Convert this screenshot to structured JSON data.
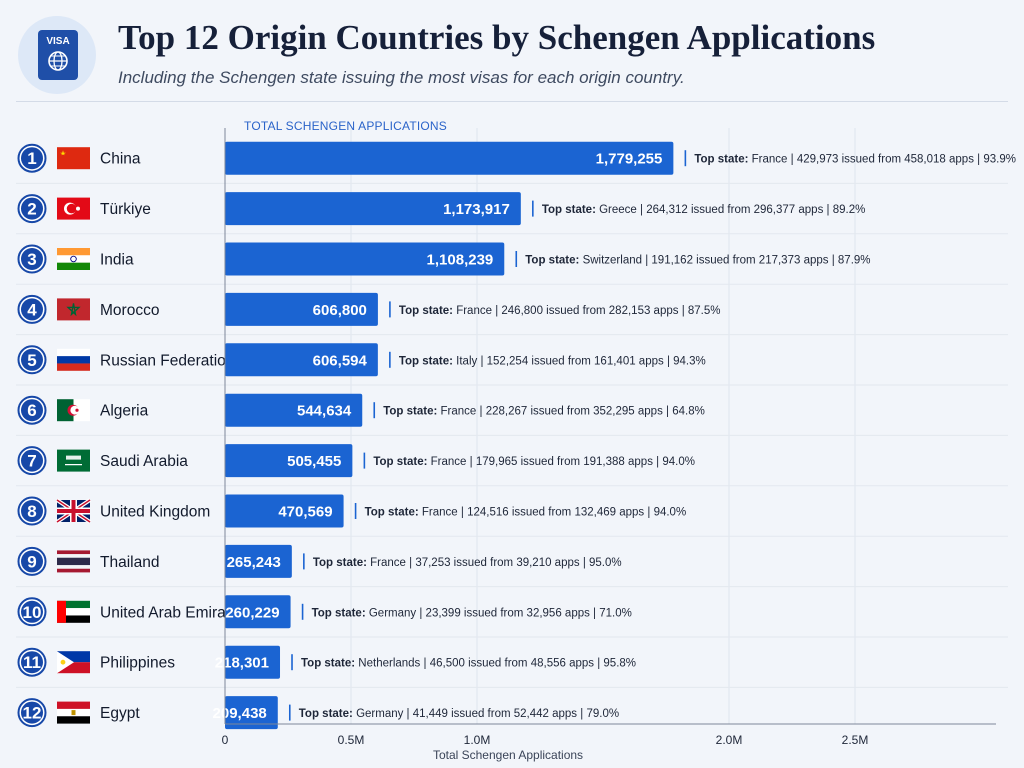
{
  "header": {
    "title": "Top 12 Origin Countries by Schengen Applications",
    "subtitle": "Including the Schengen state issuing the most visas for each origin country.",
    "icon": "passport-icon",
    "icon_label": "VISA"
  },
  "colors": {
    "bar": "#1b64d2",
    "rank_circle": "#1748a8",
    "title": "#162039",
    "axis_accent": "#2a63c9"
  },
  "chart_data": {
    "type": "bar",
    "orientation": "horizontal",
    "title": "Top 12 Origin Countries by Schengen Applications",
    "subtitle": "Including the Schengen state issuing the most visas for each origin country.",
    "series_label": "TOTAL SCHENGEN APPLICATIONS",
    "xlabel": "Total Schengen Applications",
    "xlim": [
      0,
      2500000
    ],
    "xticks": [
      {
        "value": 0,
        "label": "0"
      },
      {
        "value": 500000,
        "label": "0.5M"
      },
      {
        "value": 1000000,
        "label": "1.0M"
      },
      {
        "value": 2000000,
        "label": "2.0M"
      },
      {
        "value": 2500000,
        "label": "2.5M"
      }
    ],
    "grid": true,
    "top_state_prefix": "Top state:",
    "rows": [
      {
        "rank": "1",
        "flag": "china-flag",
        "country": "China",
        "value": 1779255,
        "value_label": "1,779,255",
        "top_state": "France",
        "issued_text": "429,973 issued from 458,018 apps",
        "rate": "93.9%"
      },
      {
        "rank": "2",
        "flag": "turkiye-flag",
        "country": "Türkiye",
        "value": 1173917,
        "value_label": "1,173,917",
        "top_state": "Greece",
        "issued_text": "264,312 issued from 296,377 apps",
        "rate": "89.2%"
      },
      {
        "rank": "3",
        "flag": "india-flag",
        "country": "India",
        "value": 1108239,
        "value_label": "1,108,239",
        "top_state": "Switzerland",
        "issued_text": "191,162 issued from 217,373 apps",
        "rate": "87.9%"
      },
      {
        "rank": "4",
        "flag": "morocco-flag",
        "country": "Morocco",
        "value": 606800,
        "value_label": "606,800",
        "top_state": "France",
        "issued_text": "246,800 issued from 282,153 apps",
        "rate": "87.5%"
      },
      {
        "rank": "5",
        "flag": "russia-flag",
        "country": "Russian Federation",
        "value": 606594,
        "value_label": "606,594",
        "top_state": "Italy",
        "issued_text": "152,254 issued from 161,401 apps",
        "rate": "94.3%"
      },
      {
        "rank": "6",
        "flag": "algeria-flag",
        "country": "Algeria",
        "value": 544634,
        "value_label": "544,634",
        "top_state": "France",
        "issued_text": "228,267 issued from 352,295 apps",
        "rate": "64.8%"
      },
      {
        "rank": "7",
        "flag": "saudi-arabia-flag",
        "country": "Saudi Arabia",
        "value": 505455,
        "value_label": "505,455",
        "top_state": "France",
        "issued_text": "179,965 issued from 191,388 apps",
        "rate": "94.0%"
      },
      {
        "rank": "8",
        "flag": "united-kingdom-flag",
        "country": "United Kingdom",
        "value": 470569,
        "value_label": "470,569",
        "top_state": "France",
        "issued_text": "124,516 issued from 132,469 apps",
        "rate": "94.0%"
      },
      {
        "rank": "9",
        "flag": "thailand-flag",
        "country": "Thailand",
        "value": 265243,
        "value_label": "265,243",
        "top_state": "France",
        "issued_text": "37,253 issued from 39,210 apps",
        "rate": "95.0%"
      },
      {
        "rank": "10",
        "flag": "uae-flag",
        "country": "United Arab Emirates",
        "value": 260229,
        "value_label": "260,229",
        "top_state": "Germany",
        "issued_text": "23,399 issued from 32,956 apps",
        "rate": "71.0%"
      },
      {
        "rank": "11",
        "flag": "philippines-flag",
        "country": "Philippines",
        "value": 218301,
        "value_label": "218,301",
        "top_state": "Netherlands",
        "issued_text": "46,500 issued from 48,556 apps",
        "rate": "95.8%"
      },
      {
        "rank": "12",
        "flag": "egypt-flag",
        "country": "Egypt",
        "value": 209438,
        "value_label": "209,438",
        "top_state": "Germany",
        "issued_text": "41,449 issued from 52,442 apps",
        "rate": "79.0%"
      }
    ]
  }
}
